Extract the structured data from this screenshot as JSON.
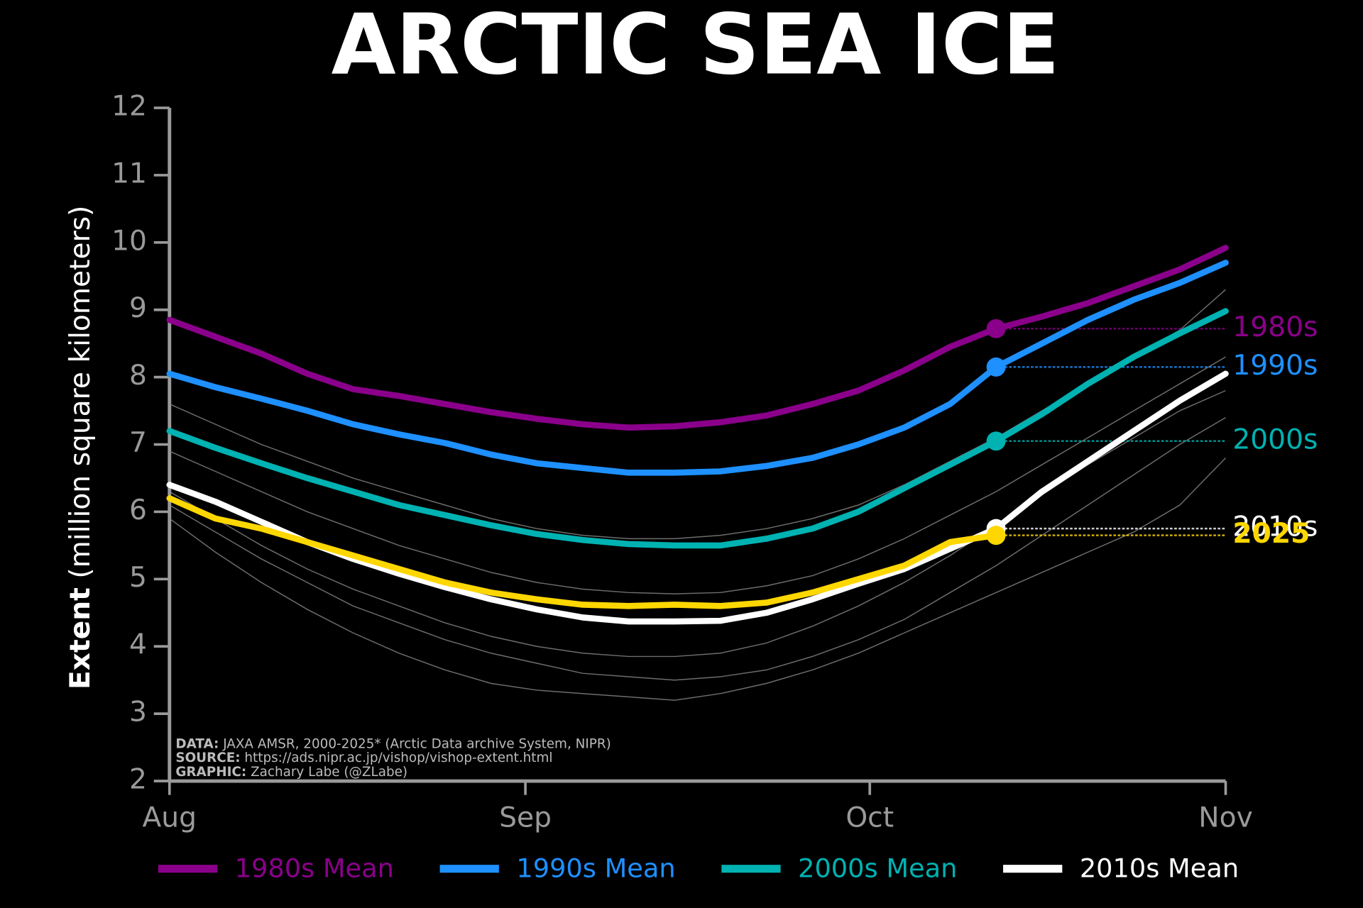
{
  "chart_data": {
    "type": "line",
    "title": "ARCTIC SEA ICE",
    "y_label_bold": "Extent",
    "y_label": "(million square kilometers)",
    "x": [
      0,
      4,
      8,
      12,
      16,
      20,
      24,
      28,
      32,
      36,
      40,
      44,
      48,
      52,
      56,
      60,
      64,
      68,
      72,
      76,
      80,
      84,
      88,
      92
    ],
    "xlim": [
      0,
      92
    ],
    "xticks": [
      {
        "value": 0,
        "label": "Aug"
      },
      {
        "value": 31,
        "label": "Sep"
      },
      {
        "value": 61,
        "label": "Oct"
      },
      {
        "value": 92,
        "label": "Nov"
      }
    ],
    "ylim": [
      2,
      12
    ],
    "yticks": [
      2,
      3,
      4,
      5,
      6,
      7,
      8,
      9,
      10,
      11,
      12
    ],
    "background_color": "#888888",
    "background_series": [
      {
        "values": [
          6.9,
          6.6,
          6.3,
          6.0,
          5.75,
          5.5,
          5.3,
          5.1,
          4.95,
          4.85,
          4.8,
          4.78,
          4.8,
          4.9,
          5.05,
          5.3,
          5.6,
          5.95,
          6.3,
          6.7,
          7.1,
          7.5,
          7.9,
          8.3
        ]
      },
      {
        "values": [
          6.1,
          5.7,
          5.3,
          4.95,
          4.6,
          4.35,
          4.1,
          3.9,
          3.75,
          3.6,
          3.55,
          3.5,
          3.55,
          3.65,
          3.85,
          4.1,
          4.4,
          4.8,
          5.2,
          5.65,
          6.1,
          6.55,
          7.0,
          7.4
        ]
      },
      {
        "values": [
          6.3,
          5.9,
          5.5,
          5.15,
          4.85,
          4.6,
          4.35,
          4.15,
          4.0,
          3.9,
          3.85,
          3.85,
          3.9,
          4.05,
          4.3,
          4.6,
          4.95,
          5.35,
          5.8,
          6.25,
          6.7,
          7.1,
          7.5,
          7.8
        ]
      },
      {
        "values": [
          5.9,
          5.4,
          4.95,
          4.55,
          4.2,
          3.9,
          3.65,
          3.45,
          3.35,
          3.3,
          3.25,
          3.2,
          3.3,
          3.45,
          3.65,
          3.9,
          4.2,
          4.5,
          4.8,
          5.1,
          5.4,
          5.7,
          6.1,
          6.8
        ]
      },
      {
        "values": [
          7.6,
          7.3,
          7.0,
          6.75,
          6.5,
          6.3,
          6.1,
          5.9,
          5.75,
          5.65,
          5.6,
          5.6,
          5.65,
          5.75,
          5.9,
          6.1,
          6.4,
          6.75,
          7.1,
          7.5,
          7.9,
          8.3,
          8.7,
          9.3
        ]
      }
    ],
    "series": [
      {
        "name": "1980s Mean",
        "label": "1980s",
        "color": "#8b008b",
        "values": [
          8.85,
          8.6,
          8.35,
          8.05,
          7.82,
          7.72,
          7.6,
          7.48,
          7.38,
          7.3,
          7.25,
          7.27,
          7.33,
          7.43,
          7.6,
          7.8,
          8.1,
          8.45,
          8.72,
          8.9,
          9.1,
          9.35,
          9.6,
          9.92
        ]
      },
      {
        "name": "1990s Mean",
        "label": "1990s",
        "color": "#1e90ff",
        "values": [
          8.05,
          7.85,
          7.68,
          7.5,
          7.3,
          7.15,
          7.02,
          6.85,
          6.72,
          6.65,
          6.58,
          6.58,
          6.6,
          6.68,
          6.8,
          7.0,
          7.25,
          7.6,
          8.15,
          8.5,
          8.85,
          9.15,
          9.4,
          9.7
        ]
      },
      {
        "name": "2000s Mean",
        "label": "2000s",
        "color": "#00b2b2",
        "values": [
          7.2,
          6.95,
          6.72,
          6.5,
          6.3,
          6.1,
          5.95,
          5.8,
          5.67,
          5.58,
          5.52,
          5.5,
          5.5,
          5.6,
          5.75,
          6.0,
          6.35,
          6.7,
          7.05,
          7.45,
          7.9,
          8.3,
          8.65,
          8.98
        ]
      },
      {
        "name": "2010s Mean",
        "label": "2010s",
        "color": "#ffffff",
        "values": [
          6.4,
          6.15,
          5.85,
          5.55,
          5.3,
          5.08,
          4.88,
          4.7,
          4.55,
          4.43,
          4.37,
          4.37,
          4.38,
          4.5,
          4.7,
          4.93,
          5.15,
          5.45,
          5.75,
          6.3,
          6.75,
          7.2,
          7.65,
          8.05
        ]
      },
      {
        "label": "2025",
        "color": "#ffd700",
        "values": [
          6.2,
          5.9,
          5.75,
          5.55,
          5.35,
          5.15,
          4.95,
          4.8,
          4.7,
          4.62,
          4.6,
          4.62,
          4.6,
          4.65,
          4.8,
          5.0,
          5.2,
          5.55,
          5.65,
          null,
          null,
          null,
          null,
          null
        ]
      }
    ],
    "marker_index": 18,
    "notes": [
      {
        "label": "DATA:",
        "text": "JAXA AMSR, 2000-2025* (Arctic Data archive System, NIPR)"
      },
      {
        "label": "SOURCE:",
        "text": "https://ads.nipr.ac.jp/vishop/vishop-extent.html"
      },
      {
        "label": "GRAPHIC:",
        "text": "Zachary Labe (@ZLabe)"
      }
    ]
  }
}
